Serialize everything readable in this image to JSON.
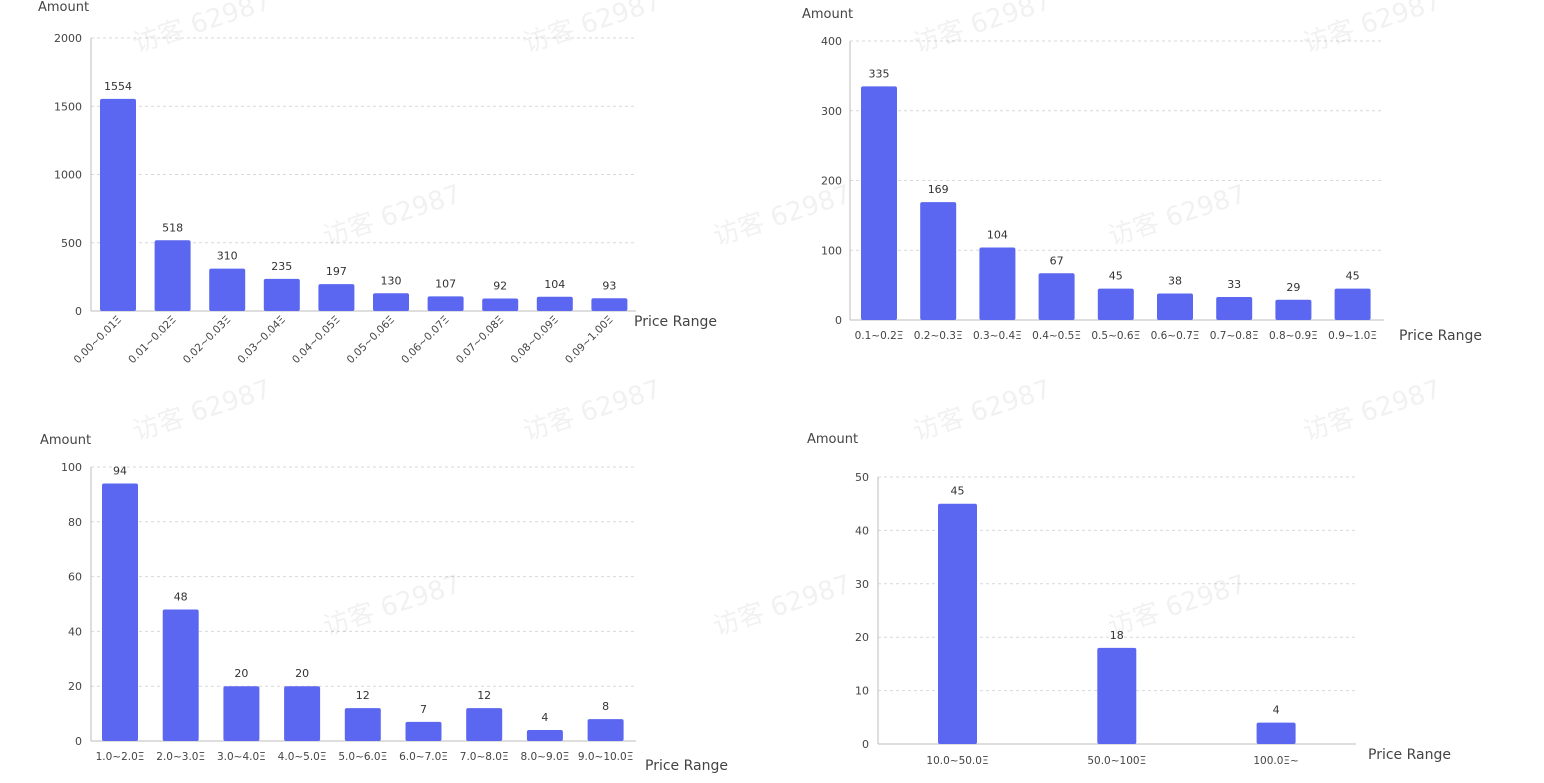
{
  "colors": {
    "bar": "#5b67f1",
    "grid": "#d9d9d9",
    "axis": "#bdbdbd",
    "text": "#444444",
    "label": "#333333"
  },
  "watermark": {
    "text": "访客 62987"
  },
  "chart_data": [
    {
      "type": "bar",
      "ylabel": "Amount",
      "xlabel": "Price Range",
      "ylim": [
        0,
        2000
      ],
      "yticks": [
        0,
        500,
        1000,
        1500,
        2000
      ],
      "grid": true,
      "categories": [
        "0.00~0.01Ξ",
        "0.01~0.02Ξ",
        "0.02~0.03Ξ",
        "0.03~0.04Ξ",
        "0.04~0.05Ξ",
        "0.05~0.06Ξ",
        "0.06~0.07Ξ",
        "0.07~0.08Ξ",
        "0.08~0.09Ξ",
        "0.09~1.00Ξ"
      ],
      "values": [
        1554,
        518,
        310,
        235,
        197,
        130,
        107,
        92,
        104,
        93
      ]
    },
    {
      "type": "bar",
      "ylabel": "Amount",
      "xlabel": "Price Range",
      "ylim": [
        0,
        400
      ],
      "yticks": [
        0,
        100,
        200,
        300,
        400
      ],
      "grid": true,
      "categories": [
        "0.1~0.2Ξ",
        "0.2~0.3Ξ",
        "0.3~0.4Ξ",
        "0.4~0.5Ξ",
        "0.5~0.6Ξ",
        "0.6~0.7Ξ",
        "0.7~0.8Ξ",
        "0.8~0.9Ξ",
        "0.9~1.0Ξ"
      ],
      "values": [
        335,
        169,
        104,
        67,
        45,
        38,
        33,
        29,
        45
      ]
    },
    {
      "type": "bar",
      "ylabel": "Amount",
      "xlabel": "Price Range",
      "ylim": [
        0,
        100
      ],
      "yticks": [
        0,
        20,
        40,
        60,
        80,
        100
      ],
      "grid": true,
      "categories": [
        "1.0~2.0Ξ",
        "2.0~3.0Ξ",
        "3.0~4.0Ξ",
        "4.0~5.0Ξ",
        "5.0~6.0Ξ",
        "6.0~7.0Ξ",
        "7.0~8.0Ξ",
        "8.0~9.0Ξ",
        "9.0~10.0Ξ"
      ],
      "values": [
        94,
        48,
        20,
        20,
        12,
        7,
        12,
        4,
        8
      ]
    },
    {
      "type": "bar",
      "ylabel": "Amount",
      "xlabel": "Price Range",
      "ylim": [
        0,
        50
      ],
      "yticks": [
        0,
        10,
        20,
        30,
        40,
        50
      ],
      "grid": true,
      "categories": [
        "10.0~50.0Ξ",
        "50.0~100Ξ",
        "100.0Ξ~"
      ],
      "values": [
        45,
        18,
        4
      ]
    }
  ]
}
